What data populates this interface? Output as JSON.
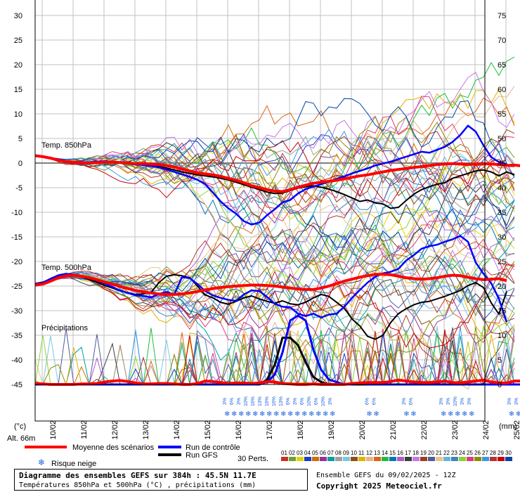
{
  "chart_data": {
    "type": "line",
    "left_axis": {
      "ticks": [
        30,
        25,
        20,
        15,
        10,
        5,
        0,
        -5,
        -10,
        -15,
        -20,
        -25,
        -30,
        -35,
        -40,
        -45
      ],
      "unit_label": "(°c)"
    },
    "right_axis": {
      "ticks": [
        75,
        70,
        65,
        60,
        55,
        50,
        45,
        40,
        35,
        30,
        25,
        20,
        15,
        10,
        5,
        0
      ],
      "unit_label": "(mm)"
    },
    "x_dates": [
      "10/02",
      "11/02",
      "12/02",
      "13/02",
      "14/02",
      "15/02",
      "16/02",
      "17/02",
      "18/02",
      "19/02",
      "20/02",
      "21/02",
      "22/02",
      "23/02",
      "24/02",
      "25/02"
    ],
    "step_hours": 6,
    "t850_mean": [
      1.5,
      1.3,
      1.0,
      0.6,
      0.3,
      0.2,
      0.1,
      0.0,
      0.1,
      0.2,
      0.2,
      0.1,
      0.0,
      -0.1,
      -0.1,
      -0.2,
      -0.3,
      -0.5,
      -0.8,
      -1.2,
      -1.6,
      -2.0,
      -2.2,
      -2.4,
      -2.7,
      -3.1,
      -3.5,
      -4.0,
      -4.6,
      -5.0,
      -5.4,
      -5.7,
      -5.8,
      -5.4,
      -4.9,
      -4.5,
      -4.1,
      -3.9,
      -3.7,
      -3.5,
      -3.2,
      -2.9,
      -2.6,
      -2.4,
      -2.1,
      -1.8,
      -1.5,
      -1.3,
      -1.1,
      -0.9,
      -0.7,
      -0.5,
      -0.3,
      -0.2,
      -0.1,
      -0.2,
      -0.3,
      -0.2,
      -0.1,
      -0.2,
      -0.3,
      -0.5,
      -0.4,
      -0.6,
      -0.7
    ],
    "t850_control": [
      1.5,
      1.4,
      1.0,
      0.8,
      0.4,
      0.3,
      0.2,
      0.1,
      0.3,
      0.4,
      0.2,
      0.1,
      -0.1,
      -0.3,
      -0.4,
      -0.6,
      -0.9,
      -1.3,
      -1.8,
      -2.3,
      -2.8,
      -3.4,
      -4.3,
      -6.0,
      -7.8,
      -9.2,
      -10.3,
      -11.8,
      -12.5,
      -12.1,
      -10.6,
      -9.4,
      -8.0,
      -7.5,
      -6.2,
      -5.3,
      -4.8,
      -4.3,
      -3.8,
      -3.2,
      -2.7,
      -2.1,
      -1.6,
      -1.1,
      -0.5,
      -0.1,
      0.3,
      0.8,
      1.3,
      1.8,
      2.3,
      2.1,
      2.7,
      3.3,
      4.3,
      5.7,
      7.6,
      6.4,
      3.6,
      1.2,
      0.2,
      -0.3
    ],
    "t850_gfs": [
      1.6,
      1.4,
      1.1,
      0.7,
      0.3,
      0.1,
      0.2,
      0.1,
      0.2,
      0.3,
      0.3,
      0.1,
      -0.1,
      -0.2,
      -0.3,
      -0.5,
      -0.7,
      -1.0,
      -1.4,
      -1.8,
      -2.1,
      -2.4,
      -2.6,
      -2.8,
      -3.1,
      -3.4,
      -3.9,
      -4.4,
      -4.9,
      -5.4,
      -5.9,
      -6.2,
      -6.1,
      -5.6,
      -5.1,
      -4.8,
      -4.6,
      -4.9,
      -5.3,
      -5.8,
      -6.4,
      -7.1,
      -7.8,
      -7.5,
      -8.1,
      -8.3,
      -9.2,
      -9.0,
      -7.6,
      -6.3,
      -5.4,
      -4.8,
      -4.3,
      -4.0,
      -3.1,
      -2.6,
      -2.1,
      -1.6,
      -1.4,
      -1.8,
      -2.6,
      -1.8,
      -2.4
    ],
    "t500_mean": [
      -24.8,
      -24.6,
      -24.0,
      -23.3,
      -22.9,
      -22.8,
      -23.0,
      -23.3,
      -23.7,
      -24.2,
      -24.6,
      -25.1,
      -25.5,
      -25.9,
      -26.2,
      -26.4,
      -26.6,
      -26.7,
      -26.7,
      -26.6,
      -26.4,
      -26.1,
      -25.8,
      -25.5,
      -25.3,
      -25.1,
      -25.0,
      -24.9,
      -24.8,
      -24.8,
      -24.9,
      -25.0,
      -25.2,
      -25.4,
      -25.6,
      -25.7,
      -25.7,
      -25.4,
      -25.0,
      -24.5,
      -24.0,
      -23.6,
      -23.2,
      -22.9,
      -22.6,
      -22.6,
      -22.7,
      -23.0,
      -23.3,
      -23.5,
      -23.6,
      -23.5,
      -23.3,
      -23.0,
      -22.8,
      -22.9,
      -23.2,
      -23.5,
      -23.7,
      -23.6,
      -23.5,
      -23.9
    ],
    "t500_control": [
      -24.6,
      -24.3,
      -23.5,
      -22.8,
      -22.5,
      -22.7,
      -23.0,
      -23.4,
      -23.9,
      -24.5,
      -25.2,
      -25.9,
      -26.4,
      -26.9,
      -27.0,
      -27.3,
      -26.6,
      -26.2,
      -26.7,
      -23.2,
      -23.4,
      -24.6,
      -26.0,
      -26.9,
      -27.4,
      -27.8,
      -28.0,
      -26.7,
      -25.9,
      -26.0,
      -27.2,
      -28.6,
      -29.2,
      -29.3,
      -30.6,
      -31.1,
      -30.6,
      -31.4,
      -30.8,
      -30.6,
      -29.2,
      -27.4,
      -25.8,
      -24.3,
      -23.1,
      -22.4,
      -22.1,
      -21.5,
      -19.8,
      -18.7,
      -17.4,
      -16.9,
      -16.6,
      -16.0,
      -15.5,
      -14.8,
      -16.0,
      -20.2,
      -22.5,
      -24.4,
      -27.6,
      -32.3
    ],
    "t500_gfs": [
      -24.5,
      -24.2,
      -23.6,
      -23.0,
      -22.6,
      -22.7,
      -23.1,
      -23.7,
      -24.2,
      -24.9,
      -25.4,
      -26.0,
      -26.4,
      -26.7,
      -26.6,
      -26.3,
      -24.3,
      -23.0,
      -22.7,
      -22.9,
      -23.3,
      -25.0,
      -26.8,
      -27.4,
      -28.3,
      -28.7,
      -28.1,
      -27.4,
      -27.0,
      -27.6,
      -28.1,
      -28.5,
      -28.0,
      -28.6,
      -28.8,
      -28.3,
      -27.4,
      -26.7,
      -27.1,
      -28.3,
      -29.5,
      -31.7,
      -33.1,
      -35.2,
      -35.8,
      -35.0,
      -32.4,
      -30.6,
      -29.6,
      -28.8,
      -28.3,
      -28.1,
      -27.6,
      -27.1,
      -26.5,
      -25.9,
      -24.9,
      -24.3,
      -25.3,
      -28.4,
      -30.7,
      -26.1
    ],
    "precip_mean_mm": [
      0.2,
      0.1,
      0.0,
      0.0,
      0.0,
      0.0,
      0.1,
      0.1,
      0.2,
      0.5,
      0.7,
      0.8,
      0.6,
      0.3,
      0.1,
      0.1,
      0.2,
      0.2,
      0.1,
      0.0,
      0.0,
      0.2,
      0.7,
      0.6,
      0.4,
      0.2,
      0.3,
      0.3,
      0.2,
      0.3,
      0.6,
      0.5,
      0.2,
      0.1,
      0.0,
      0.0,
      0.1,
      0.0,
      0.0,
      0.0,
      0.0,
      0.2,
      0.3,
      0.4,
      0.4,
      0.4,
      0.6,
      0.9,
      0.7,
      0.5,
      0.4,
      0.4,
      0.5,
      0.7,
      0.4,
      0.3,
      0.5,
      0.7,
      0.9,
      0.5,
      0.3,
      0.3,
      0.7,
      0.7,
      0.2
    ],
    "precip_control_mm": [
      0,
      0,
      0,
      0,
      0,
      0,
      0,
      0,
      0,
      0,
      0,
      0,
      0,
      0,
      0,
      0,
      0,
      0,
      0,
      0,
      0,
      0,
      0,
      0,
      0,
      0,
      0,
      0,
      0,
      0,
      0.5,
      2.0,
      6.5,
      13.0,
      14.0,
      13.0,
      7.0,
      3.0,
      1.0,
      0.5,
      0,
      0,
      0.2,
      0,
      0,
      0,
      0,
      0,
      0,
      0,
      0,
      0,
      0,
      0,
      0,
      0,
      0,
      0,
      0,
      0,
      0,
      0,
      0,
      0,
      0
    ],
    "precip_gfs_mm": [
      0,
      0,
      0,
      0,
      0,
      0,
      0,
      0,
      0,
      0,
      0,
      0,
      0,
      0,
      0,
      0,
      0,
      0,
      0,
      0,
      0,
      0,
      0,
      0,
      0,
      0,
      0,
      0,
      0,
      0,
      1.0,
      4.0,
      9.5,
      9.5,
      8.0,
      4.5,
      1.5,
      0.5,
      0,
      0,
      0,
      0,
      0,
      0,
      0,
      0,
      0,
      0,
      0,
      0,
      0,
      0,
      0,
      0,
      0,
      0,
      0,
      0,
      0,
      0,
      0,
      0,
      0,
      0,
      0.5,
      6.5,
      4.0
    ],
    "snow_risk": [
      {
        "day_index": 6.0,
        "values": [
          "3%",
          "6%",
          "3%",
          "10%",
          "16%",
          "13%",
          "16%",
          "16%",
          "13%",
          "6%",
          "3%",
          "6%",
          "10%",
          "6%",
          "10%",
          "3%"
        ]
      },
      {
        "day_index": 10.6,
        "values": [
          "6%",
          "6%"
        ]
      },
      {
        "day_index": 11.8,
        "values": [
          "3%",
          "6%"
        ]
      },
      {
        "day_index": 13.0,
        "values": [
          "3%",
          "3%",
          "10%",
          "3%",
          "3%"
        ]
      },
      {
        "day_index": 15.2,
        "values": [
          "3%",
          "3%"
        ]
      }
    ],
    "members_count": 30,
    "member_colors": [
      "#c8321e",
      "#6ea032",
      "#e6d200",
      "#1e3cc8",
      "#d26e00",
      "#963296",
      "#00a0a0",
      "#a0a0a0",
      "#78c8e6",
      "#8c5014",
      "#dcb400",
      "#e6b48c",
      "#dc6414",
      "#1ebe3c",
      "#0078b4",
      "#b45ac8",
      "#3c3c3c",
      "#c878e6",
      "#a03c1e",
      "#505aa0",
      "#e6c882",
      "#64b4dc",
      "#4682b4",
      "#8cd232",
      "#dc3c78",
      "#8c8c00",
      "#3c96e6",
      "#b43232",
      "#c80000",
      "#0046aa"
    ]
  },
  "labels": {
    "t850": "Temp. 850hPa",
    "t500": "Temp. 500hPa",
    "precip": "Précipitations",
    "alt": "Alt. 66m",
    "pert_label": "30 Perts."
  },
  "legend": {
    "mean": "Moyenne des scénarios",
    "control": "Run de contrôle",
    "gfs": "Run GFS",
    "snow": "Risque neige",
    "pert_numbers": [
      "01",
      "02",
      "03",
      "04",
      "05",
      "06",
      "07",
      "08",
      "09",
      "10",
      "11",
      "12",
      "13",
      "14",
      "15",
      "16",
      "17",
      "18",
      "19",
      "20",
      "21",
      "22",
      "23",
      "24",
      "25",
      "26",
      "27",
      "28",
      "29",
      "30"
    ]
  },
  "info": {
    "title": "Diagramme des ensembles GEFS sur 384h : 45.5N 11.7E",
    "subtitle": "Températures 850hPa et 500hPa (°C) , précipitations (mm)",
    "run": "Ensemble GEFS du 09/02/2025 - 12Z",
    "copyright": "Copyright 2025 Meteociel.fr"
  },
  "colors": {
    "mean": "#ff0000",
    "control": "#0000ff",
    "gfs": "#000000",
    "grid": "#c0c0c0",
    "zero_line": "#808080",
    "snow": "#1e64e6"
  }
}
